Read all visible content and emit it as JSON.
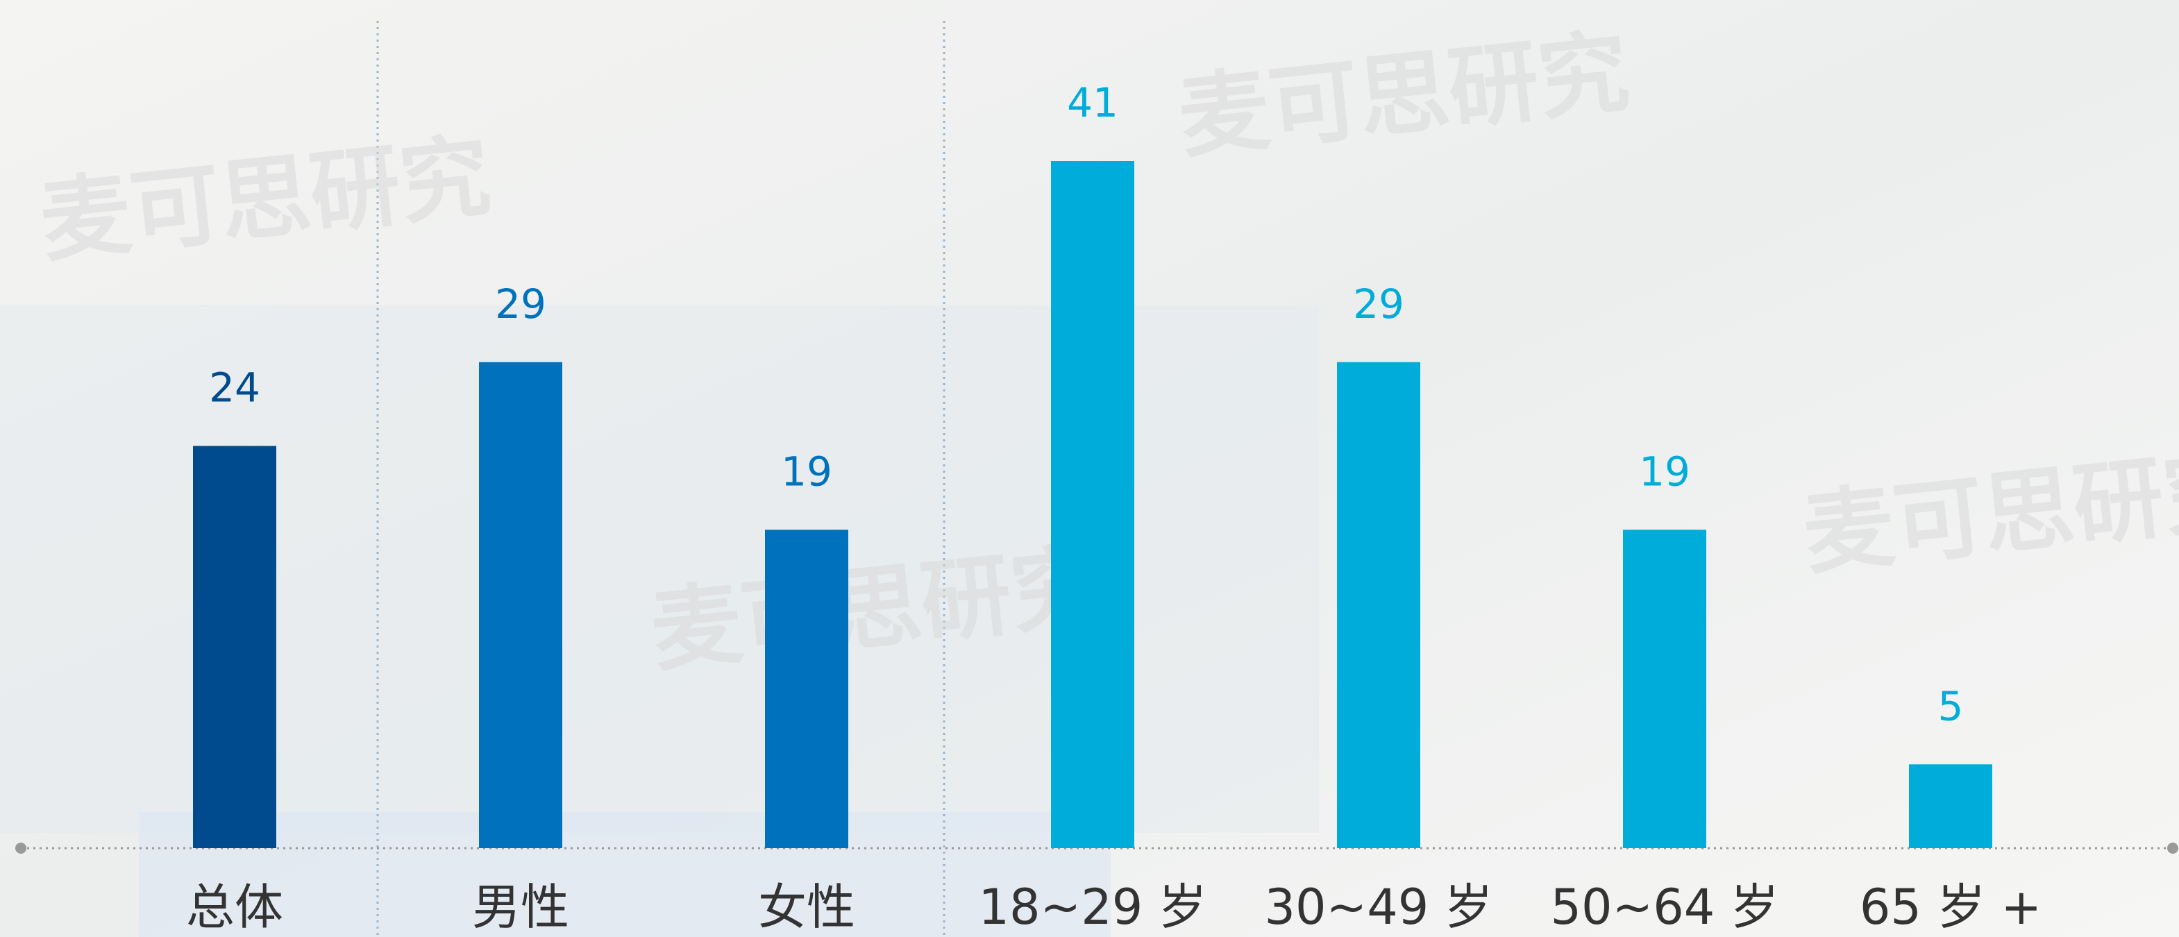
{
  "chart_data": {
    "type": "bar",
    "categories": [
      "总体",
      "男性",
      "女性",
      "18~29 岁",
      "30~49 岁",
      "50~64 岁",
      "65 岁 +"
    ],
    "values": [
      24,
      29,
      19,
      41,
      29,
      19,
      5
    ],
    "colors": [
      "#004b8d",
      "#0071bc",
      "#0071bc",
      "#00acd9",
      "#00acd9",
      "#00acd9",
      "#00acd9"
    ],
    "watermark": "麦可思研究"
  }
}
